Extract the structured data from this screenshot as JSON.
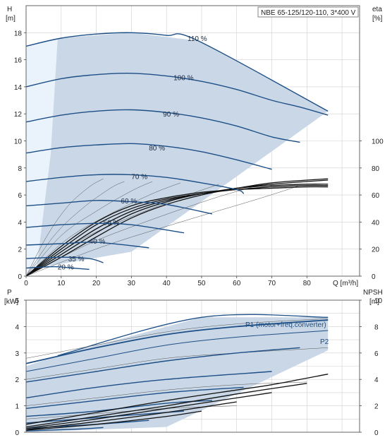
{
  "colors": {
    "envelope": "#c9d7e6",
    "envelope_light": "#eaf3fb",
    "curve_dark": "#1d4f86",
    "system": "#111111",
    "thin": "#555555",
    "grid": "#d0d0d0",
    "border": "#666666"
  },
  "chart_data": [
    {
      "type": "line",
      "id": "qh",
      "title": "NBE 65-125/120-110, 3*400 V",
      "ylabel_left": "H",
      "ylabel_left_unit": "[m]",
      "ylabel_right": "eta",
      "ylabel_right_unit": "[%]",
      "xlabel": "Q [m³/h]",
      "xlim": [
        0,
        95
      ],
      "ylim_left": [
        0,
        20
      ],
      "ylim_right": [
        0,
        200
      ],
      "x_ticks": [
        "0",
        "10",
        "20",
        "30",
        "40",
        "50",
        "60",
        "70",
        "80"
      ],
      "y_ticks_left": [
        "0",
        "2",
        "4",
        "6",
        "8",
        "10",
        "12",
        "14",
        "16",
        "18"
      ],
      "y_ticks_right": [
        "0",
        "20",
        "40",
        "60",
        "80",
        "100"
      ],
      "grid": true,
      "envelope_outline": {
        "x": [
          0,
          3,
          9,
          30,
          49,
          86,
          30,
          0
        ],
        "y": [
          0,
          0.6,
          17.6,
          18.0,
          17.6,
          12.2,
          1.8,
          0
        ]
      },
      "series": [
        {
          "name": "110 %",
          "x": [
            0,
            10,
            20,
            30,
            40,
            49,
            86
          ],
          "y": [
            17.0,
            17.6,
            17.9,
            18.0,
            17.8,
            17.4,
            12.2
          ]
        },
        {
          "name": "100 %",
          "x": [
            0,
            10,
            20,
            30,
            40,
            50,
            60,
            70,
            78,
            86
          ],
          "y": [
            14.0,
            14.6,
            14.9,
            15.0,
            14.8,
            14.4,
            13.8,
            13.0,
            12.5,
            11.9
          ]
        },
        {
          "name": "90 %",
          "x": [
            0,
            10,
            20,
            30,
            40,
            50,
            60,
            70,
            78
          ],
          "y": [
            11.4,
            11.9,
            12.2,
            12.3,
            12.1,
            11.7,
            11.1,
            10.3,
            9.9
          ]
        },
        {
          "name": "80 %",
          "x": [
            0,
            10,
            20,
            30,
            40,
            50,
            60,
            70
          ],
          "y": [
            9.1,
            9.5,
            9.7,
            9.8,
            9.6,
            9.2,
            8.6,
            7.9
          ]
        },
        {
          "name": "70 %",
          "x": [
            0,
            10,
            20,
            30,
            40,
            50,
            60,
            62
          ],
          "y": [
            7.0,
            7.3,
            7.5,
            7.5,
            7.3,
            6.9,
            6.4,
            6.1
          ]
        },
        {
          "name": "60 %",
          "x": [
            0,
            10,
            20,
            30,
            40,
            53
          ],
          "y": [
            5.2,
            5.4,
            5.6,
            5.5,
            5.3,
            4.6
          ]
        },
        {
          "name": "50 %",
          "x": [
            0,
            10,
            20,
            30,
            45
          ],
          "y": [
            3.6,
            3.8,
            3.9,
            3.8,
            3.2
          ]
        },
        {
          "name": "40 %",
          "x": [
            0,
            10,
            20,
            35
          ],
          "y": [
            2.3,
            2.4,
            2.5,
            2.1
          ]
        },
        {
          "name": "35 %",
          "x": [
            0,
            10,
            18,
            22
          ],
          "y": [
            1.3,
            1.4,
            1.3,
            1.0
          ]
        },
        {
          "name": "20 %",
          "x": [
            0,
            8,
            13,
            18
          ],
          "y": [
            0.6,
            0.7,
            0.6,
            0.5
          ]
        }
      ],
      "eta_curves": [
        {
          "x": [
            0,
            10,
            20,
            30,
            40,
            50,
            60,
            70,
            80,
            86
          ],
          "y": [
            0,
            22,
            40,
            52,
            58,
            62,
            64,
            65,
            66,
            66
          ]
        },
        {
          "x": [
            0,
            10,
            20,
            30,
            40,
            50,
            60,
            70,
            80,
            86
          ],
          "y": [
            0,
            20,
            38,
            50,
            57,
            61,
            64,
            66,
            67,
            67
          ]
        },
        {
          "x": [
            0,
            10,
            20,
            30,
            40,
            50,
            60,
            70,
            80,
            86
          ],
          "y": [
            0,
            18,
            35,
            48,
            56,
            61,
            65,
            67,
            68,
            68
          ]
        },
        {
          "x": [
            0,
            10,
            20,
            30,
            40,
            50,
            60,
            70,
            80,
            86
          ],
          "y": [
            0,
            16,
            32,
            46,
            55,
            61,
            65,
            68,
            70,
            71
          ]
        },
        {
          "x": [
            0,
            10,
            20,
            30,
            40,
            50,
            60,
            70,
            80,
            86
          ],
          "y": [
            0,
            14,
            29,
            43,
            53,
            60,
            65,
            69,
            71,
            72
          ]
        }
      ],
      "thin_curves": [
        {
          "x": [
            0,
            6,
            12,
            18,
            22
          ],
          "y": [
            0,
            3.0,
            5.2,
            6.6,
            7.2
          ]
        },
        {
          "x": [
            0,
            8,
            16,
            24,
            28
          ],
          "y": [
            0,
            3.0,
            5.0,
            6.5,
            7.0
          ]
        },
        {
          "x": [
            0,
            10,
            20,
            30,
            36
          ],
          "y": [
            0,
            3.0,
            4.8,
            6.3,
            7.0
          ]
        },
        {
          "x": [
            0,
            12,
            24,
            36,
            44
          ],
          "y": [
            0,
            2.8,
            4.6,
            6.1,
            6.9
          ]
        },
        {
          "x": [
            0,
            15,
            30,
            45,
            55
          ],
          "y": [
            0,
            2.6,
            4.4,
            5.9,
            6.8
          ]
        },
        {
          "x": [
            0,
            18,
            36,
            54,
            66
          ],
          "y": [
            0,
            2.4,
            4.2,
            5.8,
            6.7
          ]
        },
        {
          "x": [
            0,
            22,
            44,
            66,
            78
          ],
          "y": [
            0,
            2.2,
            4.0,
            5.7,
            6.7
          ]
        }
      ],
      "labels": [
        {
          "text": "110 %",
          "x": 46,
          "y": 17.6
        },
        {
          "text": "100 %",
          "x": 42,
          "y": 14.7
        },
        {
          "text": "90 %",
          "x": 39,
          "y": 12.0
        },
        {
          "text": "80 %",
          "x": 35,
          "y": 9.5
        },
        {
          "text": "70 %",
          "x": 30,
          "y": 7.4
        },
        {
          "text": "60 %",
          "x": 27,
          "y": 5.6
        },
        {
          "text": "50 %",
          "x": 22,
          "y": 4.0
        },
        {
          "text": "40 %",
          "x": 18,
          "y": 2.6
        },
        {
          "text": "35 %",
          "x": 12,
          "y": 1.3
        },
        {
          "text": "20 %",
          "x": 9,
          "y": 0.7
        }
      ]
    },
    {
      "type": "line",
      "id": "p",
      "ylabel_left": "P",
      "ylabel_left_unit": "[kW]",
      "ylabel_right": "NPSH",
      "ylabel_right_unit": "[m]",
      "xlim": [
        0,
        95
      ],
      "ylim_left": [
        0,
        5
      ],
      "ylim_right": [
        0,
        10
      ],
      "y_ticks_left": [
        "0",
        "1",
        "2",
        "3",
        "4",
        "5"
      ],
      "y_ticks_right": [
        "0",
        "2",
        "4",
        "6",
        "8",
        "10"
      ],
      "grid": true,
      "envelope_outline": {
        "x": [
          0,
          9,
          50,
          86,
          86,
          0
        ],
        "y": [
          2.5,
          2.9,
          4.35,
          4.35,
          0.55,
          0
        ]
      },
      "series": [
        {
          "name": "P1 (motor+freq.converter)",
          "x": [
            0,
            20,
            40,
            60,
            86
          ],
          "y": [
            2.6,
            3.2,
            3.7,
            4.0,
            4.25
          ]
        },
        {
          "name": "P2",
          "x": [
            0,
            20,
            40,
            60,
            86
          ],
          "y": [
            2.3,
            2.8,
            3.3,
            3.6,
            3.85
          ]
        }
      ],
      "p_curves": [
        {
          "x": [
            0,
            20,
            40,
            60,
            78
          ],
          "y": [
            1.9,
            2.3,
            2.7,
            3.0,
            3.2
          ]
        },
        {
          "x": [
            0,
            20,
            40,
            70
          ],
          "y": [
            1.3,
            1.7,
            2.0,
            2.3
          ]
        },
        {
          "x": [
            0,
            20,
            40,
            62
          ],
          "y": [
            0.9,
            1.2,
            1.5,
            1.7
          ]
        },
        {
          "x": [
            0,
            20,
            40,
            53
          ],
          "y": [
            0.6,
            0.8,
            1.1,
            1.2
          ]
        },
        {
          "x": [
            0,
            20,
            45
          ],
          "y": [
            0.35,
            0.55,
            0.8
          ]
        },
        {
          "x": [
            0,
            20,
            35
          ],
          "y": [
            0.15,
            0.3,
            0.45
          ]
        },
        {
          "x": [
            0,
            15,
            22
          ],
          "y": [
            0.05,
            0.12,
            0.18
          ]
        }
      ],
      "npsh_curves": [
        {
          "x": [
            0,
            20,
            40,
            60,
            70,
            86
          ],
          "y": [
            0.6,
            1.5,
            2.4,
            3.2,
            3.6,
            4.4
          ]
        },
        {
          "x": [
            0,
            20,
            40,
            60,
            80
          ],
          "y": [
            0.4,
            1.2,
            2.0,
            2.9,
            3.7
          ]
        },
        {
          "x": [
            0,
            20,
            40,
            60,
            70
          ],
          "y": [
            0.3,
            1.0,
            1.8,
            2.6,
            3.0
          ]
        },
        {
          "x": [
            0,
            20,
            40,
            60
          ],
          "y": [
            0.2,
            0.8,
            1.5,
            2.3
          ]
        },
        {
          "x": [
            0,
            20,
            40,
            50
          ],
          "y": [
            0.15,
            0.6,
            1.2,
            1.6
          ]
        }
      ],
      "thin_curves": [
        {
          "x": [
            0,
            20,
            40,
            60,
            86
          ],
          "y": [
            2.8,
            3.3,
            3.8,
            4.1,
            4.3
          ]
        },
        {
          "x": [
            0,
            20,
            40,
            60,
            86
          ],
          "y": [
            2.0,
            2.4,
            2.8,
            3.0,
            3.2
          ]
        },
        {
          "x": [
            0,
            20,
            40,
            60,
            80
          ],
          "y": [
            1.0,
            1.3,
            1.6,
            1.8,
            1.9
          ]
        },
        {
          "x": [
            0,
            20,
            40,
            60
          ],
          "y": [
            0.5,
            0.7,
            0.9,
            1.0
          ]
        }
      ]
    }
  ]
}
